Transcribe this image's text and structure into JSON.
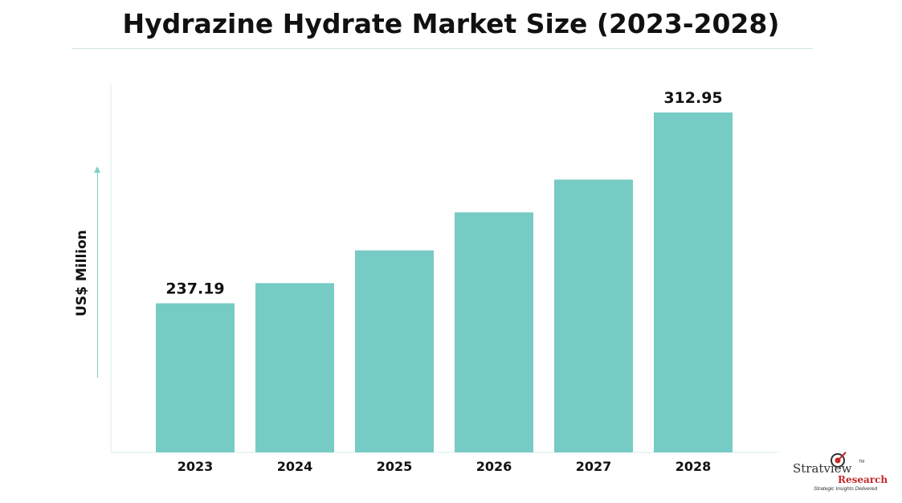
{
  "chart_data": {
    "type": "bar",
    "title": "Hydrazine Hydrate Market Size (2023-2028)",
    "ylabel": "US$ Million",
    "xlabel": "",
    "categories": [
      "2023",
      "2024",
      "2025",
      "2026",
      "2027",
      "2028"
    ],
    "values": [
      237.19,
      245.2,
      258.2,
      273.3,
      286.3,
      312.95
    ],
    "data_labels": [
      "237.19",
      "",
      "",
      "",
      "",
      "312.95"
    ],
    "ylim": [
      178,
      320
    ],
    "grid": false,
    "legend": "none",
    "bar_color": "#76cbc5"
  },
  "logo": {
    "name_part1": "Stratview",
    "name_part2": "Research",
    "tagline": "Strategic Insights Delivered",
    "tm": "TM"
  }
}
